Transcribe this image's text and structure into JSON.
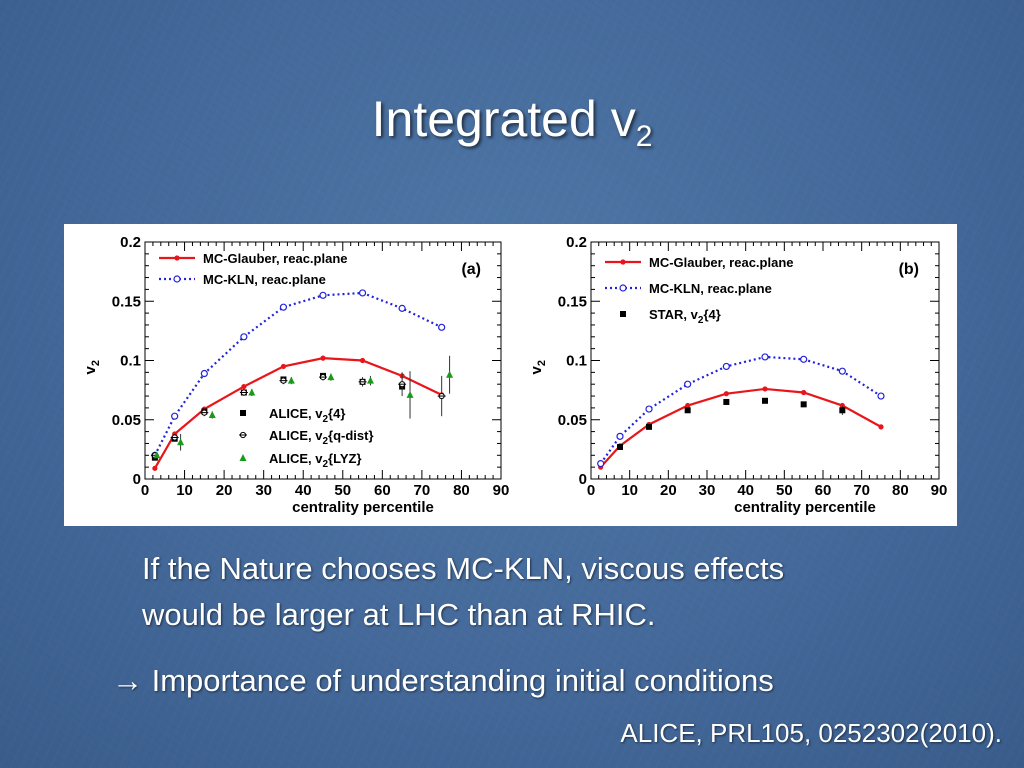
{
  "slide": {
    "title_main": "Integrated v",
    "title_sub": "2",
    "bullet_line1": "If the Nature chooses MC-KLN, viscous effects",
    "bullet_line2": "would be larger at LHC than at RHIC.",
    "arrow": "→",
    "conclusion": "Importance of understanding initial conditions",
    "citation": "ALICE, PRL105, 0252302(2010)."
  },
  "colors": {
    "red": "#e8161b",
    "blue": "#2222dd",
    "green": "#1a9a1a",
    "black": "#000000"
  },
  "chart_data": [
    {
      "panel_label": "(a)",
      "type": "line",
      "xlabel": "centrality percentile",
      "ylabel": "v2",
      "xlim": [
        0,
        90
      ],
      "ylim": [
        0,
        0.2
      ],
      "xticks": [
        "0",
        "10",
        "20",
        "30",
        "40",
        "50",
        "60",
        "70",
        "80",
        "90"
      ],
      "yticks": [
        "0",
        "0.05",
        "0.1",
        "0.15",
        "0.2"
      ],
      "series": [
        {
          "name": "MC-Glauber, reac.plane",
          "kind": "line",
          "color": "#e8161b",
          "x": [
            2.5,
            7.5,
            15,
            25,
            35,
            45,
            55,
            65,
            75
          ],
          "y": [
            0.009,
            0.038,
            0.059,
            0.078,
            0.095,
            0.102,
            0.1,
            0.087,
            0.071
          ]
        },
        {
          "name": "MC-KLN, reac.plane",
          "kind": "dotted",
          "color": "#2222dd",
          "x": [
            2.5,
            7.5,
            15,
            25,
            35,
            45,
            55,
            65,
            75
          ],
          "y": [
            0.02,
            0.053,
            0.089,
            0.12,
            0.145,
            0.155,
            0.157,
            0.144,
            0.128
          ]
        },
        {
          "name": "ALICE, v",
          "sub": "2",
          "suffix": "{4}",
          "kind": "square",
          "color": "#000000",
          "x": [
            2.5,
            7.5,
            15,
            25,
            35,
            45,
            55,
            65
          ],
          "y": [
            0.018,
            0.034,
            0.057,
            0.073,
            0.084,
            0.087,
            0.082,
            0.078
          ]
        },
        {
          "name": "ALICE, v",
          "sub": "2",
          "suffix": "{q-dist}",
          "kind": "cross",
          "color": "#000000",
          "x": [
            2.5,
            7.5,
            15,
            25,
            35,
            45,
            55,
            65,
            75
          ],
          "y": [
            0.02,
            0.035,
            0.056,
            0.073,
            0.083,
            0.086,
            0.082,
            0.08,
            0.07
          ],
          "err": [
            0.003,
            0.003,
            0.003,
            0.003,
            0.003,
            0.003,
            0.004,
            0.01,
            0.017
          ]
        },
        {
          "name": "ALICE, v",
          "sub": "2",
          "suffix": "{LYZ}",
          "kind": "triangle",
          "color": "#1a9a1a",
          "x": [
            3,
            9,
            17,
            27,
            37,
            47,
            57,
            67,
            77
          ],
          "y": [
            0.02,
            0.031,
            0.054,
            0.073,
            0.083,
            0.086,
            0.083,
            0.071,
            0.088
          ],
          "err": [
            0.002,
            0.007,
            0.003,
            0.003,
            0.003,
            0.003,
            0.004,
            0.02,
            0.016
          ]
        }
      ]
    },
    {
      "panel_label": "(b)",
      "type": "line",
      "xlabel": "centrality percentile",
      "ylabel": "v2",
      "xlim": [
        0,
        90
      ],
      "ylim": [
        0,
        0.2
      ],
      "xticks": [
        "0",
        "10",
        "20",
        "30",
        "40",
        "50",
        "60",
        "70",
        "80",
        "90"
      ],
      "yticks": [
        "0",
        "0.05",
        "0.1",
        "0.15",
        "0.2"
      ],
      "series": [
        {
          "name": "MC-Glauber, reac.plane",
          "kind": "line",
          "color": "#e8161b",
          "x": [
            2.5,
            7.5,
            15,
            25,
            35,
            45,
            55,
            65,
            75
          ],
          "y": [
            0.01,
            0.028,
            0.046,
            0.062,
            0.072,
            0.076,
            0.073,
            0.062,
            0.044
          ]
        },
        {
          "name": "MC-KLN, reac.plane",
          "kind": "dotted",
          "color": "#2222dd",
          "x": [
            2.5,
            7.5,
            15,
            25,
            35,
            45,
            55,
            65,
            75
          ],
          "y": [
            0.013,
            0.036,
            0.059,
            0.08,
            0.095,
            0.103,
            0.101,
            0.091,
            0.07
          ]
        },
        {
          "name": "STAR, v",
          "sub": "2",
          "suffix": "{4}",
          "kind": "square",
          "color": "#000000",
          "x": [
            7.5,
            15,
            25,
            35,
            45,
            55,
            65
          ],
          "y": [
            0.027,
            0.044,
            0.058,
            0.065,
            0.066,
            0.063,
            0.058
          ],
          "err": [
            0.002,
            0.002,
            0.002,
            0.002,
            0.002,
            0.002,
            0.004
          ]
        }
      ]
    }
  ]
}
